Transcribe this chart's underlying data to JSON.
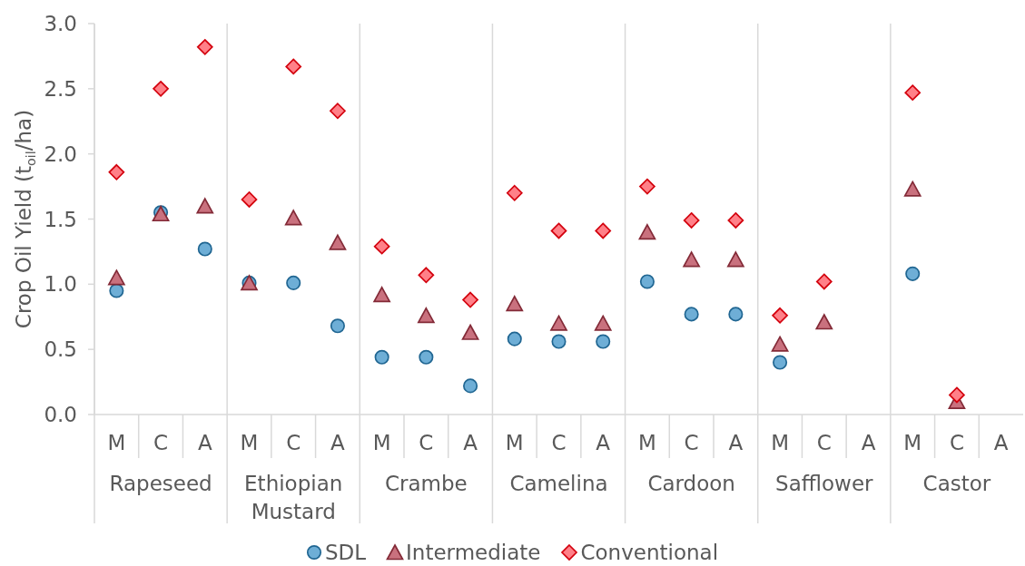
{
  "chart_data": {
    "type": "scatter",
    "ylabel": "Crop Oil Yield (t$_{oil}$/ha)",
    "categories": [
      "M",
      "C",
      "A",
      "M",
      "C",
      "A",
      "M",
      "C",
      "A",
      "M",
      "C",
      "A",
      "M",
      "C",
      "A",
      "M",
      "C",
      "A",
      "M",
      "C",
      "A"
    ],
    "annotations": [
      "Rapeseed",
      "Ethiopian Mustard",
      "Crambe",
      "Camelina",
      "Cardoon",
      "Safflower",
      "Castor"
    ],
    "series": [
      {
        "name": "SDL",
        "color": "#6eaed6",
        "marker": "circle",
        "values": [
          0.95,
          1.55,
          1.27,
          1.01,
          1.01,
          0.68,
          0.44,
          0.44,
          0.22,
          0.58,
          0.56,
          0.56,
          1.02,
          0.77,
          0.77,
          0.4,
          null,
          null,
          1.08,
          null,
          null
        ]
      },
      {
        "name": "Intermediate",
        "color": "#c9717e",
        "marker": "triangle",
        "values": [
          1.05,
          1.54,
          1.6,
          1.01,
          1.51,
          1.32,
          0.92,
          0.76,
          0.63,
          0.85,
          0.7,
          0.7,
          1.4,
          1.19,
          1.19,
          0.54,
          0.71,
          null,
          1.73,
          0.1,
          null
        ]
      },
      {
        "name": "Conventional",
        "color": "#ff8088",
        "marker": "diamond",
        "values": [
          1.86,
          2.5,
          2.82,
          1.65,
          2.67,
          2.33,
          1.29,
          1.07,
          0.88,
          1.7,
          1.41,
          1.41,
          1.75,
          1.49,
          1.49,
          0.76,
          1.02,
          null,
          2.47,
          0.15,
          null
        ]
      }
    ],
    "ylim": [
      0,
      3
    ],
    "yticks": [
      {
        "value": 0,
        "label": "0.0"
      },
      0.5,
      {
        "value": 1,
        "label": "1.0"
      },
      1.5,
      {
        "value": 2,
        "label": "2.0"
      },
      2.5,
      {
        "value": 3,
        "label": "3.0"
      }
    ],
    "grid": "x",
    "legend": "bottom"
  }
}
